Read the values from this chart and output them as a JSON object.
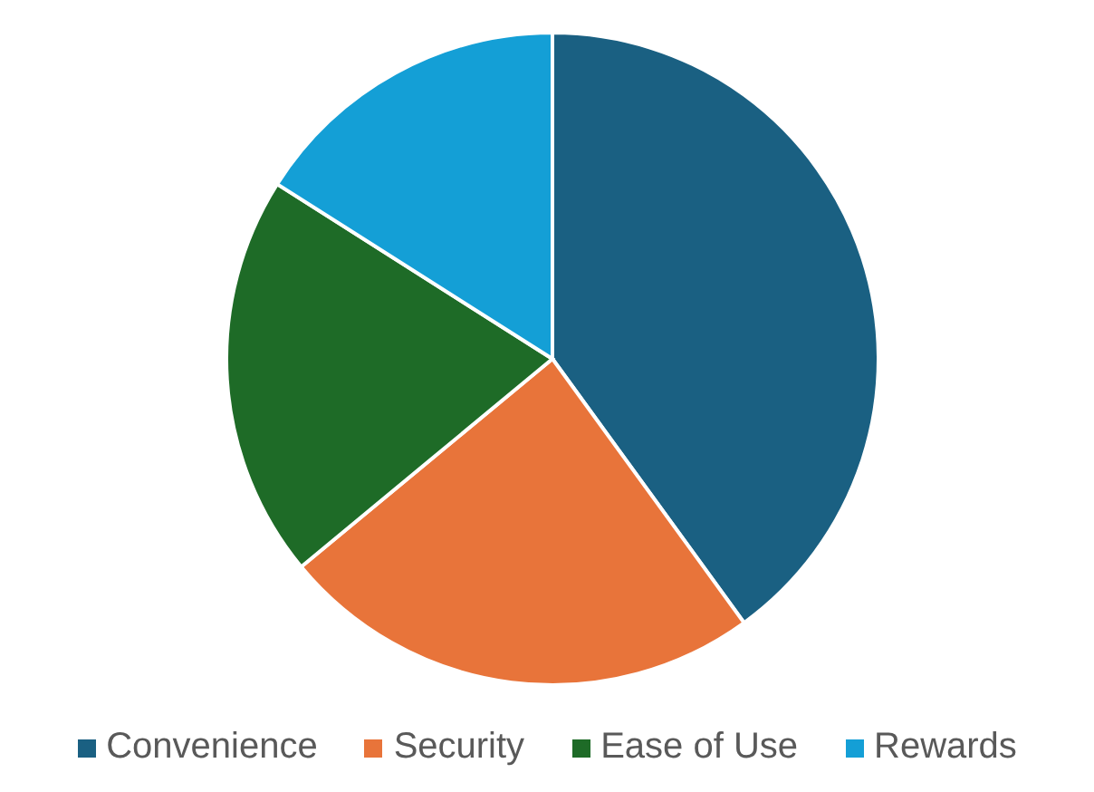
{
  "chart_data": {
    "type": "pie",
    "categories": [
      "Convenience",
      "Security",
      "Ease of Use",
      "Rewards"
    ],
    "values": [
      40,
      24,
      20,
      16
    ],
    "colors": [
      "#1a6082",
      "#e8743a",
      "#1e6b27",
      "#149fd6"
    ],
    "legend": "bottom"
  }
}
